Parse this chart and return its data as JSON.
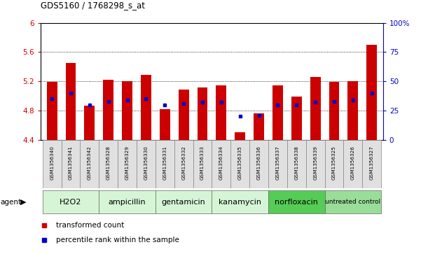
{
  "title": "GDS5160 / 1768298_s_at",
  "samples": [
    "GSM1356340",
    "GSM1356341",
    "GSM1356342",
    "GSM1356328",
    "GSM1356329",
    "GSM1356330",
    "GSM1356331",
    "GSM1356332",
    "GSM1356333",
    "GSM1356334",
    "GSM1356335",
    "GSM1356336",
    "GSM1356337",
    "GSM1356338",
    "GSM1356339",
    "GSM1356325",
    "GSM1356326",
    "GSM1356327"
  ],
  "transformed_count": [
    5.19,
    5.45,
    4.87,
    5.22,
    5.2,
    5.29,
    4.82,
    5.09,
    5.12,
    5.14,
    4.5,
    4.76,
    5.14,
    4.99,
    5.26,
    5.19,
    5.2,
    5.7
  ],
  "percentile_rank": [
    35,
    40,
    30,
    33,
    34,
    35,
    30,
    31,
    32,
    32,
    20,
    21,
    30,
    30,
    32,
    33,
    34,
    40
  ],
  "groups": [
    {
      "label": "H2O2",
      "color": "#d6f5d6",
      "start": 0,
      "end": 3
    },
    {
      "label": "ampicillin",
      "color": "#d6f5d6",
      "start": 3,
      "end": 6
    },
    {
      "label": "gentamicin",
      "color": "#d6f5d6",
      "start": 6,
      "end": 9
    },
    {
      "label": "kanamycin",
      "color": "#d6f5d6",
      "start": 9,
      "end": 12
    },
    {
      "label": "norfloxacin",
      "color": "#55cc55",
      "start": 12,
      "end": 15
    },
    {
      "label": "untreated control",
      "color": "#99dd99",
      "start": 15,
      "end": 18
    }
  ],
  "ymin": 4.4,
  "ymax": 6.0,
  "yticks": [
    4.4,
    4.8,
    5.2,
    5.6,
    6.0
  ],
  "ytick_labels": [
    "4.4",
    "4.8",
    "5.2",
    "5.6",
    "6"
  ],
  "right_yticks": [
    0,
    25,
    50,
    75,
    100
  ],
  "right_ytick_labels": [
    "0",
    "25",
    "50",
    "75",
    "100%"
  ],
  "bar_color": "#cc0000",
  "dot_color": "#0000cc",
  "bar_width": 0.55,
  "xlabel_color": "#cc0000",
  "ylabel_right_color": "#0000cc",
  "grid_dotted_values": [
    4.8,
    5.2,
    5.6
  ],
  "legend_items": [
    {
      "label": "transformed count",
      "color": "#cc0000"
    },
    {
      "label": "percentile rank within the sample",
      "color": "#0000cc"
    }
  ]
}
